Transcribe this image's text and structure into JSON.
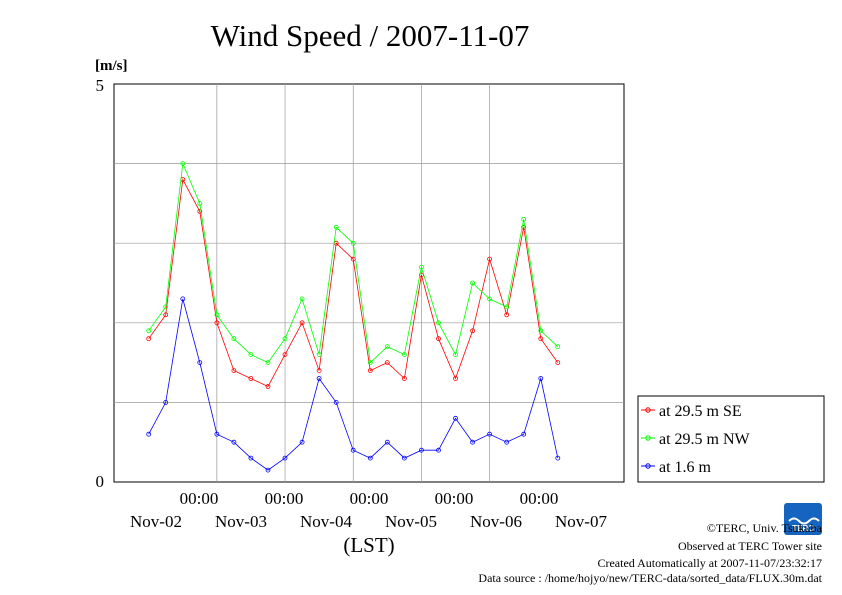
{
  "chart_data": {
    "type": "line",
    "title": "Wind Speed / 2007-11-07",
    "ylabel": "[m/s]",
    "xlabel": "(LST)",
    "ylim": [
      0,
      5
    ],
    "y_ticks": [
      "0",
      "5"
    ],
    "x_tick_labels": [
      "00:00",
      "00:00",
      "00:00",
      "00:00",
      "00:00"
    ],
    "x_date_labels": [
      "Nov-02",
      "Nov-03",
      "Nov-04",
      "Nov-05",
      "Nov-06",
      "Nov-07"
    ],
    "grid": true,
    "legend_position": "right",
    "x_units": "hours since 2007-11-01 00:00 LST",
    "x": [
      24,
      30,
      36,
      42,
      48,
      54,
      60,
      66,
      72,
      78,
      84,
      90,
      96,
      102,
      108,
      114,
      120,
      126,
      132,
      138,
      144,
      150,
      156,
      162,
      168
    ],
    "series": [
      {
        "name": "at 29.5 m SE",
        "color": "#ff0000",
        "values": [
          1.8,
          2.1,
          3.8,
          3.4,
          2.0,
          1.4,
          1.3,
          1.2,
          1.6,
          2.0,
          1.4,
          3.0,
          2.8,
          1.4,
          1.5,
          1.3,
          2.6,
          1.8,
          1.3,
          1.9,
          2.8,
          2.1,
          3.2,
          1.8,
          1.5
        ]
      },
      {
        "name": "at 29.5 m NW",
        "color": "#00ff00",
        "values": [
          1.9,
          2.2,
          4.0,
          3.5,
          2.1,
          1.8,
          1.6,
          1.5,
          1.8,
          2.3,
          1.6,
          3.2,
          3.0,
          1.5,
          1.7,
          1.6,
          2.7,
          2.0,
          1.6,
          2.5,
          2.3,
          2.2,
          3.3,
          1.9,
          1.7
        ]
      },
      {
        "name": "at 1.6 m",
        "color": "#0000ff",
        "values": [
          0.6,
          1.0,
          2.3,
          1.5,
          0.6,
          0.5,
          0.3,
          0.15,
          0.3,
          0.5,
          1.3,
          1.0,
          0.4,
          0.3,
          0.5,
          0.3,
          0.4,
          0.4,
          0.8,
          0.5,
          0.6,
          0.5,
          0.6,
          1.3,
          0.3
        ]
      }
    ]
  },
  "footer": {
    "copyright": "©TERC, Univ. Tsukuba",
    "observed": "Observed at TERC Tower site",
    "created": "Created Automatically at 2007-11-07/23:32:17",
    "source": "Data source : /home/hojyo/new/TERC-data/sorted_data/FLUX.30m.dat"
  },
  "logo": {
    "text": "TERC",
    "color": "#1565c0"
  }
}
